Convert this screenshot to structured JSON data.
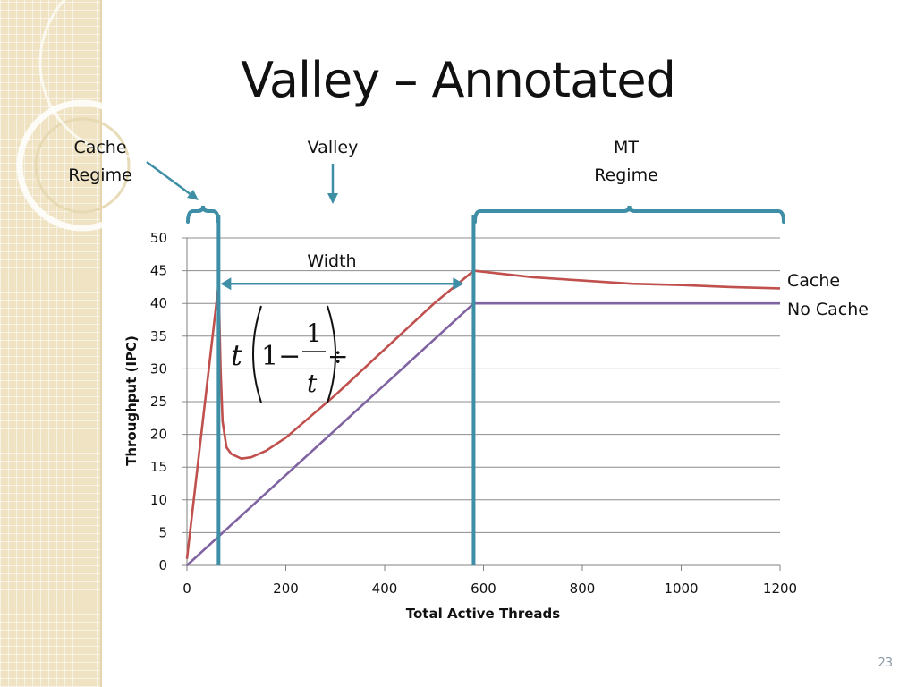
{
  "slide": {
    "title": "Valley – Annotated",
    "number": "23"
  },
  "annotations": {
    "cache_regime": [
      "Cache",
      "Regime"
    ],
    "valley": "Valley",
    "mt_regime": [
      "MT",
      "Regime"
    ],
    "width": "Width"
  },
  "colors": {
    "cache": "#c0504d",
    "no_cache": "#8064a2",
    "bracket": "#3e8ea6",
    "grid": "#808080"
  },
  "chart_data": {
    "type": "line",
    "xlabel": "Total Active Threads",
    "ylabel": "Throughput (IPC)",
    "xlim": [
      0,
      1200
    ],
    "ylim": [
      0,
      50
    ],
    "x_ticks": [
      0,
      200,
      400,
      600,
      800,
      1000,
      1200
    ],
    "y_ticks": [
      0,
      5,
      10,
      15,
      20,
      25,
      30,
      35,
      40,
      45,
      50
    ],
    "grid": "horizontal",
    "legend": "right, at line ends",
    "series": [
      {
        "name": "Cache",
        "color": "#c0504d",
        "points": [
          [
            0,
            1
          ],
          [
            64,
            43
          ],
          [
            68,
            30
          ],
          [
            72,
            22
          ],
          [
            80,
            18
          ],
          [
            90,
            17
          ],
          [
            110,
            16.3
          ],
          [
            130,
            16.5
          ],
          [
            160,
            17.5
          ],
          [
            200,
            19.5
          ],
          [
            300,
            26
          ],
          [
            400,
            33
          ],
          [
            500,
            40
          ],
          [
            580,
            45
          ],
          [
            700,
            44
          ],
          [
            800,
            43.5
          ],
          [
            900,
            43
          ],
          [
            1000,
            42.8
          ],
          [
            1100,
            42.5
          ],
          [
            1200,
            42.3
          ]
        ]
      },
      {
        "name": "No Cache",
        "color": "#8064a2",
        "points": [
          [
            0,
            0
          ],
          [
            580,
            40
          ],
          [
            1200,
            40
          ]
        ]
      }
    ],
    "annotations": {
      "formula": "t(1 − 1/t)",
      "width_arrow": {
        "from_x": 64,
        "to_x": 560,
        "y": 43
      },
      "cache_regime_bracket": [
        0,
        64
      ],
      "mt_regime_bracket": [
        580,
        1200
      ],
      "vertical_markers_x": [
        64,
        580
      ]
    }
  }
}
